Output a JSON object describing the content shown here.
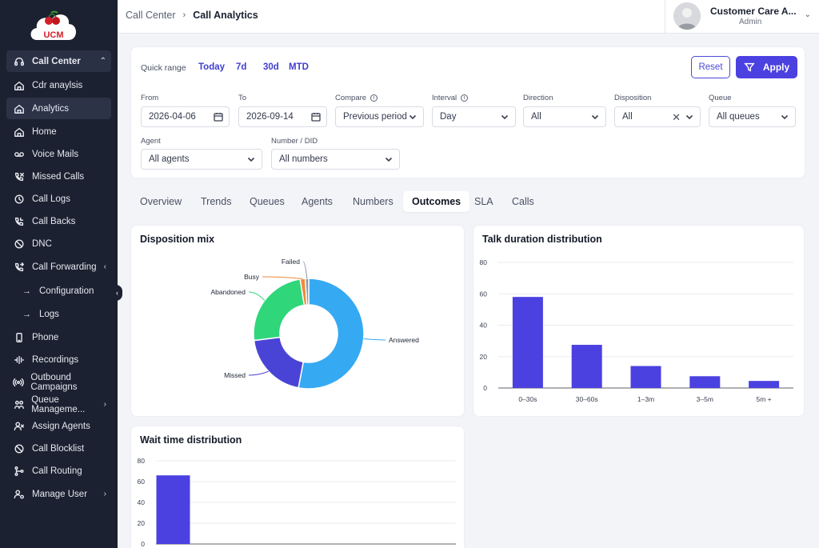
{
  "app": {
    "logo_text": "UCM"
  },
  "sidebar": {
    "group": {
      "label": "Call Center"
    },
    "items": [
      {
        "label": "Cdr anaylsis",
        "icon": "home-icon"
      },
      {
        "label": "Analytics",
        "icon": "home-icon"
      },
      {
        "label": "Home",
        "icon": "home-icon"
      },
      {
        "label": "Voice Mails",
        "icon": "voicemail-icon"
      },
      {
        "label": "Missed Calls",
        "icon": "missed-call-icon"
      },
      {
        "label": "Call Logs",
        "icon": "history-icon"
      },
      {
        "label": "Call Backs",
        "icon": "phone-callback-icon"
      },
      {
        "label": "DNC",
        "icon": "block-icon"
      },
      {
        "label": "Call Forwarding",
        "icon": "phone-forward-icon"
      }
    ],
    "sub_items": [
      {
        "label": "Configuration"
      },
      {
        "label": "Logs"
      }
    ],
    "items_after": [
      {
        "label": "Phone",
        "icon": "mobile-phone-icon"
      },
      {
        "label": "Recordings",
        "icon": "waveform-icon"
      },
      {
        "label": "Outbound Campaigns",
        "icon": "broadcast-icon"
      },
      {
        "label": "Queue Manageme...",
        "icon": "queue-icon"
      },
      {
        "label": "Assign Agents",
        "icon": "assign-agents-icon"
      },
      {
        "label": "Call Blocklist",
        "icon": "block-icon"
      },
      {
        "label": "Call Routing",
        "icon": "routing-icon"
      },
      {
        "label": "Manage User",
        "icon": "user-gear-icon"
      }
    ]
  },
  "header": {
    "breadcrumb_parent": "Call Center",
    "breadcrumb_current": "Call Analytics",
    "user_name": "Customer Care A...",
    "user_role": "Admin"
  },
  "filters": {
    "quick_range_label": "Quick range",
    "quick_ranges": [
      "Today",
      "7d",
      "30d",
      "MTD"
    ],
    "reset_label": "Reset",
    "apply_label": "Apply",
    "from": {
      "label": "From",
      "value": "2026-04-06"
    },
    "to": {
      "label": "To",
      "value": "2026-09-14"
    },
    "compare": {
      "label": "Compare",
      "value": "Previous period"
    },
    "interval": {
      "label": "Interval",
      "value": "Day"
    },
    "direction": {
      "label": "Direction",
      "value": "All"
    },
    "disposition": {
      "label": "Disposition",
      "value": "All"
    },
    "queue": {
      "label": "Queue",
      "value": "All queues"
    },
    "agent": {
      "label": "Agent",
      "value": "All agents"
    },
    "number": {
      "label": "Number / DID",
      "value": "All numbers"
    }
  },
  "tabs": [
    "Overview",
    "Trends",
    "Queues",
    "Agents",
    "Numbers",
    "Outcomes",
    "SLA",
    "Calls"
  ],
  "active_tab": "Outcomes",
  "cards": {
    "disposition": {
      "title": "Disposition mix"
    },
    "talk": {
      "title": "Talk duration distribution"
    },
    "wait": {
      "title": "Wait time distribution"
    }
  },
  "chart_data": [
    {
      "type": "pie",
      "title": "Disposition mix",
      "donut": true,
      "slices": [
        {
          "label": "Answered",
          "value": 53,
          "color": "#36a9f3"
        },
        {
          "label": "Missed",
          "value": 20,
          "color": "#4a44d6"
        },
        {
          "label": "Abandoned",
          "value": 24.5,
          "color": "#2fd67a"
        },
        {
          "label": "Busy",
          "value": 1.5,
          "color": "#f08a3c"
        },
        {
          "label": "Failed",
          "value": 1,
          "color": "#8a95a6"
        }
      ]
    },
    {
      "type": "bar",
      "title": "Talk duration distribution",
      "categories": [
        "0–30s",
        "30–60s",
        "1–3m",
        "3–5m",
        "5m +"
      ],
      "values": [
        58,
        27.5,
        14,
        7.5,
        4.5
      ],
      "ylim": [
        0,
        80
      ],
      "yticks": [
        0,
        20,
        40,
        60,
        80
      ],
      "color": "#4b40e0",
      "grid": true
    },
    {
      "type": "bar",
      "title": "Wait time distribution",
      "categories": [
        ""
      ],
      "values": [
        66
      ],
      "ylim": [
        0,
        80
      ],
      "yticks": [
        0,
        20,
        40,
        60,
        80
      ],
      "color": "#4b40e0",
      "grid": true
    }
  ]
}
